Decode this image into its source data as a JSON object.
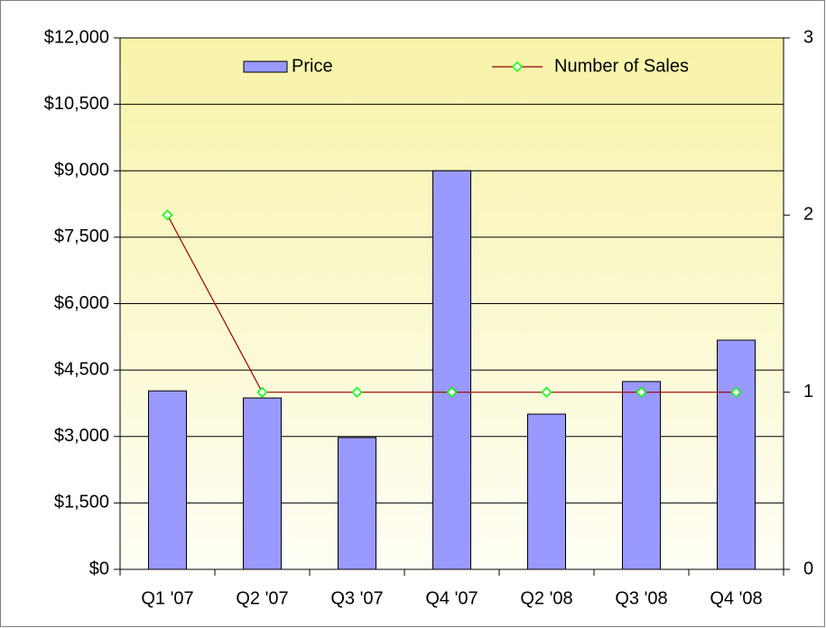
{
  "chart_data": {
    "type": "bar",
    "categories": [
      "Q1 '07",
      "Q2 '07",
      "Q3 '07",
      "Q4 '07",
      "Q2 '08",
      "Q3 '08",
      "Q4 '08"
    ],
    "series": [
      {
        "name": "Price",
        "type": "bar",
        "color": "#9999ff",
        "values": [
          4030,
          3870,
          2975,
          9000,
          3505,
          4240,
          5175
        ]
      },
      {
        "name": "Number of Sales",
        "type": "line",
        "axis": "y2",
        "color": "#990000",
        "marker_color": "#00ff00",
        "values": [
          2,
          1,
          1,
          1,
          1,
          1,
          1
        ]
      }
    ],
    "ylim": [
      0,
      12000
    ],
    "yticks": [
      {
        "value": 0,
        "label": "$0"
      },
      {
        "value": 1500,
        "label": "$1,500"
      },
      {
        "value": 3000,
        "label": "$3,000"
      },
      {
        "value": 4500,
        "label": "$4,500"
      },
      {
        "value": 6000,
        "label": "$6,000"
      },
      {
        "value": 7500,
        "label": "$7,500"
      },
      {
        "value": 9000,
        "label": "$9,000"
      },
      {
        "value": 10500,
        "label": "$10,500"
      },
      {
        "value": 12000,
        "label": "$12,000"
      }
    ],
    "y2lim": [
      0,
      3
    ],
    "y2ticks": [
      0,
      1,
      2,
      3
    ],
    "grid": true,
    "legend": "top"
  }
}
